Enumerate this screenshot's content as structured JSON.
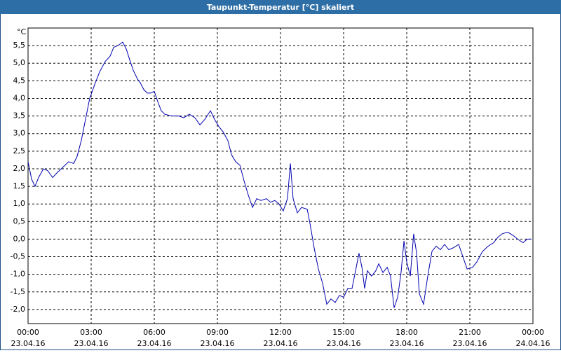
{
  "chart_data": {
    "type": "line",
    "title": "Taupunkt-Temperatur [°C] skaliert",
    "y_unit": "°C",
    "xlim": [
      0,
      24
    ],
    "xticks": [
      {
        "value": 0,
        "label": "00:00"
      },
      {
        "value": 3,
        "label": "03:00"
      },
      {
        "value": 6,
        "label": "06:00"
      },
      {
        "value": 9,
        "label": "09:00"
      },
      {
        "value": 12,
        "label": "12:00"
      },
      {
        "value": 15,
        "label": "15:00"
      },
      {
        "value": 18,
        "label": "18:00"
      },
      {
        "value": 21,
        "label": "21:00"
      },
      {
        "value": 24,
        "label": "00:00"
      }
    ],
    "xtick_dates": [
      "23.04.16",
      "23.04.16",
      "23.04.16",
      "23.04.16",
      "23.04.16",
      "23.04.16",
      "23.04.16",
      "23.04.16",
      "24.04.16"
    ],
    "ylim": [
      -2.4,
      6.0
    ],
    "yticks": [
      {
        "value": -2.0,
        "label": "-2,0"
      },
      {
        "value": -1.5,
        "label": "-1,5"
      },
      {
        "value": -1.0,
        "label": "-1,0"
      },
      {
        "value": -0.5,
        "label": "-0,5"
      },
      {
        "value": 0.0,
        "label": "0,0"
      },
      {
        "value": 0.5,
        "label": "0,5"
      },
      {
        "value": 1.0,
        "label": "1,0"
      },
      {
        "value": 1.5,
        "label": "1,5"
      },
      {
        "value": 2.0,
        "label": "2,0"
      },
      {
        "value": 2.5,
        "label": "2,5"
      },
      {
        "value": 3.0,
        "label": "3,0"
      },
      {
        "value": 3.5,
        "label": "3,5"
      },
      {
        "value": 4.0,
        "label": "4,0"
      },
      {
        "value": 4.5,
        "label": "4,5"
      },
      {
        "value": 5.0,
        "label": "5,0"
      },
      {
        "value": 5.5,
        "label": "5,5"
      }
    ],
    "grid": true,
    "series": [
      {
        "color": "#0000b0",
        "x": [
          0,
          0.17,
          0.33,
          0.5,
          0.73,
          0.93,
          1.17,
          1.4,
          1.67,
          1.93,
          2.17,
          2.33,
          2.53,
          2.73,
          2.93,
          3.17,
          3.4,
          3.67,
          3.9,
          4.07,
          4.27,
          4.5,
          4.67,
          4.83,
          5.0,
          5.2,
          5.33,
          5.5,
          5.67,
          5.83,
          6.0,
          6.17,
          6.33,
          6.5,
          6.83,
          7.17,
          7.4,
          7.67,
          7.93,
          8.17,
          8.4,
          8.67,
          8.87,
          9.07,
          9.27,
          9.5,
          9.67,
          9.87,
          10.07,
          10.27,
          10.47,
          10.67,
          10.87,
          11.07,
          11.33,
          11.53,
          11.73,
          11.93,
          12.13,
          12.33,
          12.47,
          12.6,
          12.8,
          13.0,
          13.27,
          13.4,
          13.6,
          13.8,
          14.0,
          14.2,
          14.4,
          14.6,
          14.8,
          15.0,
          15.2,
          15.4,
          15.6,
          15.73,
          15.87,
          16.0,
          16.13,
          16.33,
          16.53,
          16.67,
          16.87,
          17.07,
          17.23,
          17.4,
          17.57,
          17.73,
          17.87,
          18.0,
          18.17,
          18.33,
          18.47,
          18.6,
          18.8,
          19.0,
          19.2,
          19.4,
          19.6,
          19.8,
          20.0,
          20.2,
          20.47,
          20.67,
          20.87,
          21.13,
          21.33,
          21.6,
          21.87,
          22.13,
          22.33,
          22.53,
          22.8,
          23.07,
          23.27,
          23.53,
          23.73,
          23.93
        ],
        "values": [
          2.2,
          1.7,
          1.5,
          1.75,
          2.0,
          1.95,
          1.75,
          1.9,
          2.05,
          2.2,
          2.15,
          2.35,
          2.8,
          3.4,
          4.0,
          4.4,
          4.75,
          5.05,
          5.2,
          5.45,
          5.5,
          5.6,
          5.4,
          5.1,
          4.8,
          4.55,
          4.45,
          4.25,
          4.15,
          4.15,
          4.2,
          3.9,
          3.65,
          3.55,
          3.5,
          3.5,
          3.45,
          3.55,
          3.45,
          3.25,
          3.4,
          3.65,
          3.4,
          3.2,
          3.05,
          2.8,
          2.4,
          2.2,
          2.1,
          1.65,
          1.25,
          0.9,
          1.15,
          1.1,
          1.15,
          1.05,
          1.1,
          1.0,
          0.8,
          1.15,
          2.15,
          1.15,
          0.75,
          0.9,
          0.85,
          0.45,
          -0.25,
          -0.85,
          -1.25,
          -1.85,
          -1.7,
          -1.8,
          -1.6,
          -1.65,
          -1.4,
          -1.4,
          -0.8,
          -0.4,
          -0.8,
          -1.4,
          -0.9,
          -1.05,
          -0.9,
          -0.7,
          -0.95,
          -0.8,
          -1.05,
          -1.95,
          -1.65,
          -0.95,
          -0.05,
          -0.65,
          -1.05,
          0.15,
          -0.4,
          -1.55,
          -1.85,
          -1.05,
          -0.35,
          -0.2,
          -0.3,
          -0.15,
          -0.3,
          -0.25,
          -0.15,
          -0.5,
          -0.85,
          -0.8,
          -0.65,
          -0.35,
          -0.2,
          -0.1,
          0.05,
          0.15,
          0.2,
          0.1,
          0.0,
          -0.1,
          0.0,
          0.0
        ]
      }
    ]
  }
}
